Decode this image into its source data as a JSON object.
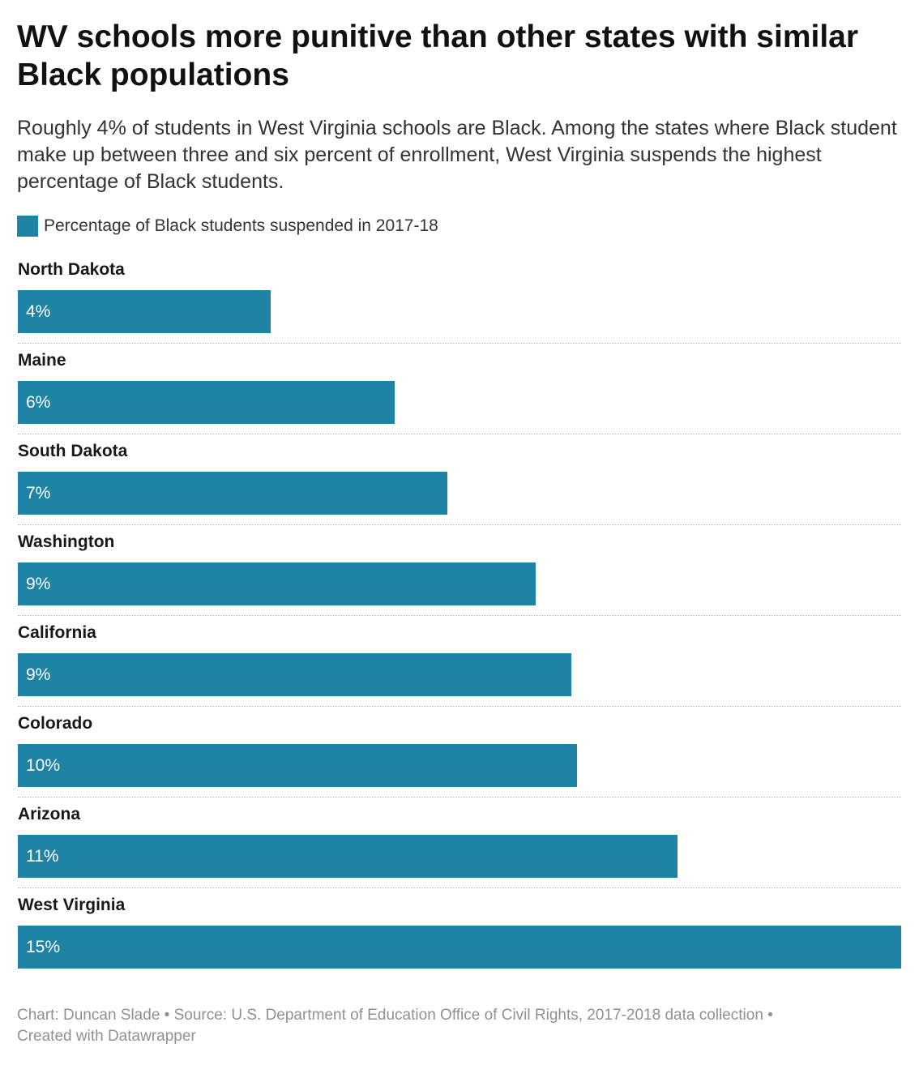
{
  "title": "WV schools more punitive than other states with similar Black populations",
  "subtitle": "Roughly 4% of students in West Virginia schools are Black. Among the states where Black student make up between three and six percent of enrollment, West Virginia suspends the highest percentage of Black students.",
  "footer": {
    "line1": "Chart: Duncan Slade • Source: U.S. Department of Education Office of Civil Rights, 2017-2018 data collection •",
    "line2": "Created with Datawrapper"
  },
  "colors": {
    "bar": "#1f83a6"
  },
  "chart_data": {
    "type": "bar",
    "orientation": "horizontal",
    "title": "WV schools more punitive than other states with similar Black populations",
    "legend": {
      "placement": "top-left",
      "entries": [
        "Percentage of Black students suspended in 2017-18"
      ]
    },
    "series": [
      {
        "name": "Percentage of Black students suspended in 2017-18",
        "values": [
          4.3,
          6.4,
          7.3,
          8.8,
          9.4,
          9.5,
          11.2,
          15.0
        ]
      }
    ],
    "categories": [
      "North Dakota",
      "Maine",
      "South Dakota",
      "Washington",
      "California",
      "Colorado",
      "Arizona",
      "West Virginia"
    ],
    "labels": [
      "4%",
      "6%",
      "7%",
      "9%",
      "9%",
      "10%",
      "11%",
      "15%"
    ],
    "xlim": [
      0,
      15.0
    ],
    "grid": false
  }
}
